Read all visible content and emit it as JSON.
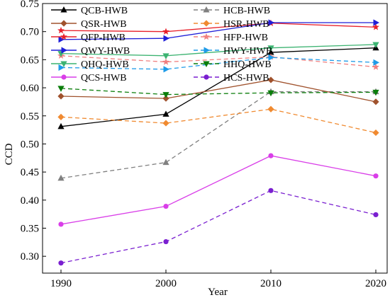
{
  "chart_data": {
    "type": "line",
    "xlabel": "Year",
    "ylabel": "CCD",
    "x": [
      1990,
      2000,
      2010,
      2020
    ],
    "xticks": [
      "1990",
      "2000",
      "2010",
      "2020"
    ],
    "ylim": [
      0.27,
      0.75
    ],
    "yticks": [
      "0.30",
      "0.35",
      "0.40",
      "0.45",
      "0.50",
      "0.55",
      "0.60",
      "0.65",
      "0.70",
      "0.75"
    ],
    "legend_position": "top",
    "series": [
      {
        "name": "QCB-HWB",
        "values": [
          0.531,
          0.553,
          0.663,
          0.671
        ],
        "color": "#000000",
        "dash": "solid",
        "marker": "triangle-up"
      },
      {
        "name": "HCB-HWB",
        "values": [
          0.439,
          0.467,
          0.593,
          0.593
        ],
        "color": "#808080",
        "dash": "dashed",
        "marker": "triangle-up"
      },
      {
        "name": "QSR-HWB",
        "values": [
          0.585,
          0.581,
          0.614,
          0.575
        ],
        "color": "#a0522d",
        "dash": "solid",
        "marker": "diamond"
      },
      {
        "name": "HSR-HWB",
        "values": [
          0.548,
          0.537,
          0.562,
          0.52
        ],
        "color": "#f08a30",
        "dash": "dashed",
        "marker": "diamond"
      },
      {
        "name": "QFP-HWB",
        "values": [
          0.702,
          0.7,
          0.715,
          0.708
        ],
        "color": "#e8202a",
        "dash": "solid",
        "marker": "star"
      },
      {
        "name": "HFP-HWB",
        "values": [
          0.657,
          0.646,
          0.655,
          0.637
        ],
        "color": "#f08080",
        "dash": "dashed",
        "marker": "star"
      },
      {
        "name": "QWY-HWB",
        "values": [
          0.686,
          0.688,
          0.716,
          0.716
        ],
        "color": "#1f1fd8",
        "dash": "solid",
        "marker": "triangle-right"
      },
      {
        "name": "HWY-HWB",
        "values": [
          0.636,
          0.633,
          0.654,
          0.645
        ],
        "color": "#1e9be8",
        "dash": "dashed",
        "marker": "triangle-right"
      },
      {
        "name": "QHQ-HWB",
        "values": [
          0.661,
          0.657,
          0.671,
          0.677
        ],
        "color": "#3cb371",
        "dash": "solid",
        "marker": "triangle-down"
      },
      {
        "name": "HHQ-HWB",
        "values": [
          0.599,
          0.588,
          0.591,
          0.592
        ],
        "color": "#0a7d0a",
        "dash": "dashed",
        "marker": "triangle-down"
      },
      {
        "name": "QCS-HWB",
        "values": [
          0.357,
          0.389,
          0.479,
          0.443
        ],
        "color": "#d93ee8",
        "dash": "solid",
        "marker": "circle"
      },
      {
        "name": "HCS-HWB",
        "values": [
          0.288,
          0.326,
          0.417,
          0.374
        ],
        "color": "#7a1fd0",
        "dash": "dashed",
        "marker": "circle"
      }
    ]
  }
}
